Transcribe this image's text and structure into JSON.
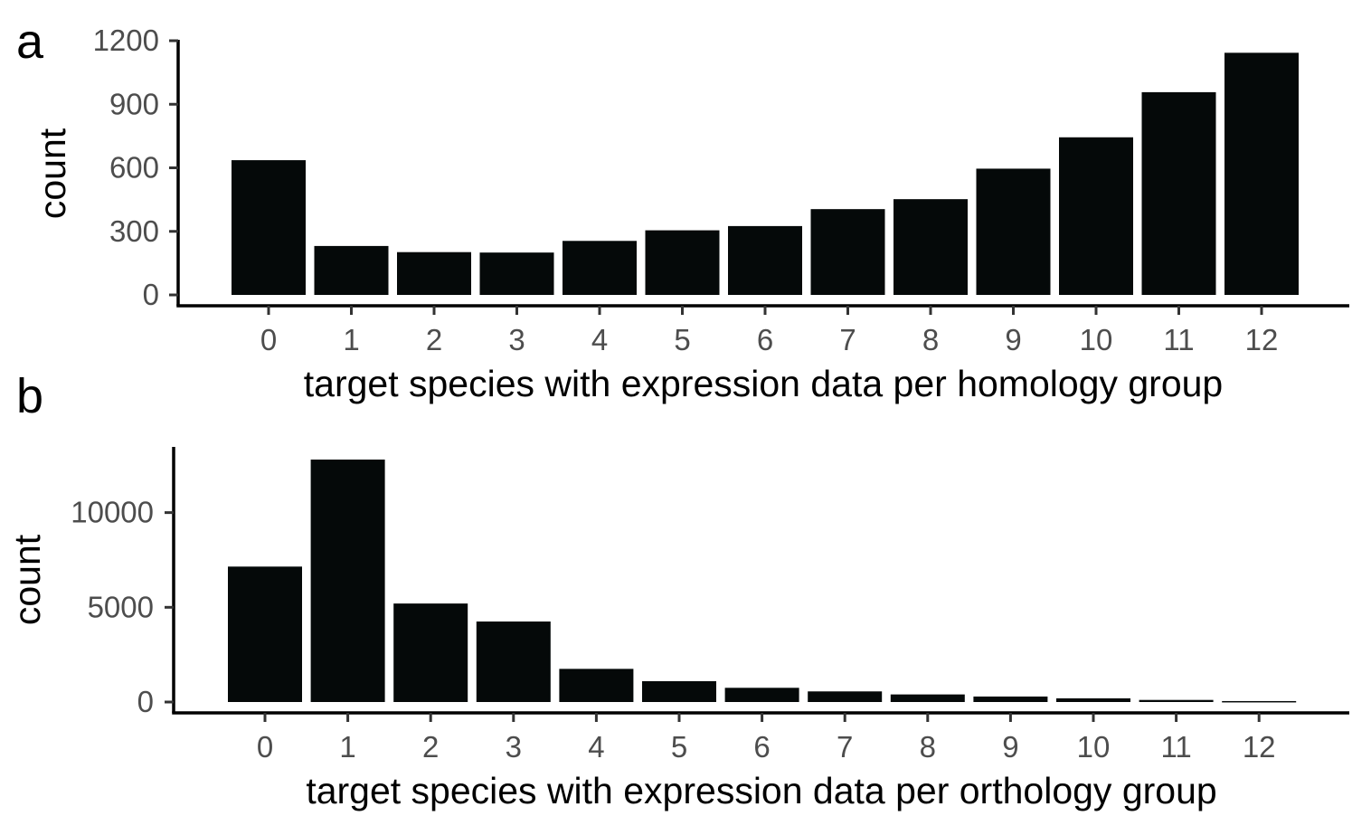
{
  "panels": [
    {
      "letter": "a",
      "chart_data": {
        "type": "bar",
        "categories": [
          "0",
          "1",
          "2",
          "3",
          "4",
          "5",
          "6",
          "7",
          "8",
          "9",
          "10",
          "11",
          "12"
        ],
        "values": [
          636,
          231,
          202,
          200,
          255,
          305,
          325,
          405,
          452,
          596,
          744,
          957,
          1143
        ],
        "title": "",
        "xlabel": "target species with expression data per homology group",
        "ylabel": "count",
        "yticks": [
          0,
          300,
          600,
          900,
          1200
        ],
        "ytick_labels": [
          "0",
          "300",
          "600",
          "900",
          "1200"
        ],
        "ylim": [
          0,
          1200
        ],
        "grid": false,
        "legend": "none"
      }
    },
    {
      "letter": "b",
      "chart_data": {
        "type": "bar",
        "categories": [
          "0",
          "1",
          "2",
          "3",
          "4",
          "5",
          "6",
          "7",
          "8",
          "9",
          "10",
          "11",
          "12"
        ],
        "values": [
          7150,
          12800,
          5200,
          4250,
          1750,
          1100,
          750,
          560,
          400,
          290,
          195,
          110,
          50
        ],
        "title": "",
        "xlabel": "target species with expression data per orthology group",
        "ylabel": "count",
        "yticks": [
          0,
          5000,
          10000
        ],
        "ytick_labels": [
          "0",
          "5000",
          "10000"
        ],
        "ylim": [
          0,
          12800
        ],
        "grid": false,
        "legend": "none"
      }
    }
  ]
}
